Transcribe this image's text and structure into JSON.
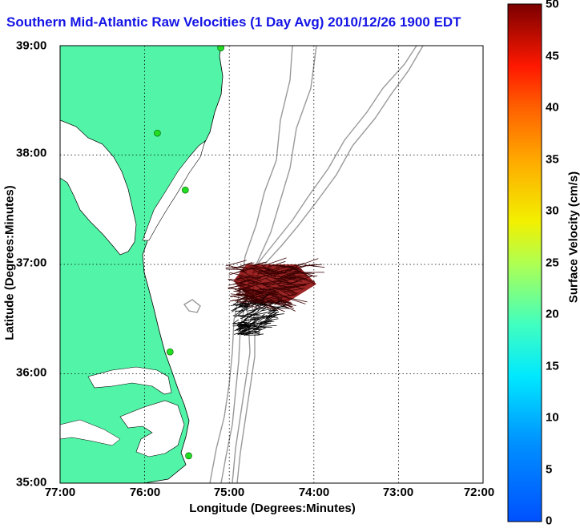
{
  "title": "Southern Mid-Atlantic Raw Velocities (1 Day Avg) 2010/12/26 1900 EDT",
  "xaxis": {
    "label": "Longitude (Degrees:Minutes)",
    "ticks": [
      "77:00",
      "76:00",
      "75:00",
      "74:00",
      "73:00",
      "72:00"
    ]
  },
  "yaxis": {
    "label": "Latitude (Degrees:Minutes)",
    "ticks": [
      "39:00",
      "38:00",
      "37:00",
      "36:00",
      "35:00"
    ]
  },
  "colorbar": {
    "label": "Surface Velocity (cm/s)",
    "ticks": [
      "50",
      "45",
      "40",
      "35",
      "30",
      "25",
      "20",
      "15",
      "10",
      "5",
      "0"
    ],
    "min": 0,
    "max": 50,
    "colormap": "jet"
  },
  "colors": {
    "land": "#52f5a8",
    "title": "#1414e6",
    "bathymetry": "#999999",
    "station": "#22dd22",
    "vectors_fill": "#8b0000"
  },
  "chart_data": {
    "type": "vector-field map",
    "x_range": [
      -77.0,
      -72.0
    ],
    "y_range": [
      35.0,
      39.0
    ],
    "grid": true,
    "stations": [
      {
        "lon": -75.1,
        "lat": 38.98
      },
      {
        "lon": -75.85,
        "lat": 38.2
      },
      {
        "lon": -75.52,
        "lat": 37.68
      },
      {
        "lon": -75.7,
        "lat": 36.2
      },
      {
        "lon": -75.48,
        "lat": 35.25
      }
    ],
    "vector_region": {
      "lon_min": -75.0,
      "lon_max": -73.95,
      "lat_min": 36.35,
      "lat_max": 37.0
    },
    "typical_speed_cm_s": 48
  }
}
